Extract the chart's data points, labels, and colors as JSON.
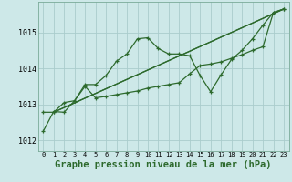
{
  "background_color": "#cde8e8",
  "grid_color": "#aacccc",
  "line_color": "#2d6a2d",
  "marker_color": "#2d6a2d",
  "xlabel": "Graphe pression niveau de la mer (hPa)",
  "xlabel_fontsize": 7.5,
  "ylabel_ticks": [
    1012,
    1013,
    1014,
    1015
  ],
  "xlim": [
    -0.5,
    23.5
  ],
  "ylim": [
    1011.7,
    1015.85
  ],
  "series1_x": [
    0,
    1,
    2,
    3,
    4,
    5,
    6,
    7,
    8,
    9,
    10,
    11,
    12,
    13,
    14,
    15,
    16,
    17,
    18,
    19,
    20,
    21,
    22,
    23
  ],
  "series1": [
    1012.25,
    1012.8,
    1012.78,
    1013.1,
    1013.55,
    1013.55,
    1013.8,
    1014.2,
    1014.4,
    1014.82,
    1014.85,
    1014.55,
    1014.4,
    1014.4,
    1014.35,
    1013.8,
    1013.35,
    1013.82,
    1014.25,
    1014.5,
    1014.82,
    1015.2,
    1015.55,
    1015.65
  ],
  "series2_x": [
    0,
    1,
    2,
    3,
    4,
    5,
    6,
    7,
    8,
    9,
    10,
    11,
    12,
    13,
    14,
    15,
    16,
    17,
    18,
    19,
    20,
    21,
    22,
    23
  ],
  "series2": [
    1012.78,
    1012.78,
    1013.05,
    1013.1,
    1013.5,
    1013.18,
    1013.22,
    1013.27,
    1013.32,
    1013.37,
    1013.45,
    1013.5,
    1013.55,
    1013.6,
    1013.85,
    1014.08,
    1014.12,
    1014.18,
    1014.28,
    1014.38,
    1014.5,
    1014.6,
    1015.55,
    1015.65
  ],
  "series3_x": [
    1,
    23
  ],
  "series3": [
    1012.78,
    1015.65
  ],
  "series4_x": [
    1,
    23
  ],
  "series4": [
    1012.78,
    1015.65
  ],
  "xtick_labels": [
    "0",
    "1",
    "2",
    "3",
    "4",
    "5",
    "6",
    "7",
    "8",
    "9",
    "10",
    "11",
    "12",
    "13",
    "14",
    "15",
    "16",
    "17",
    "18",
    "19",
    "20",
    "21",
    "22",
    "23"
  ]
}
